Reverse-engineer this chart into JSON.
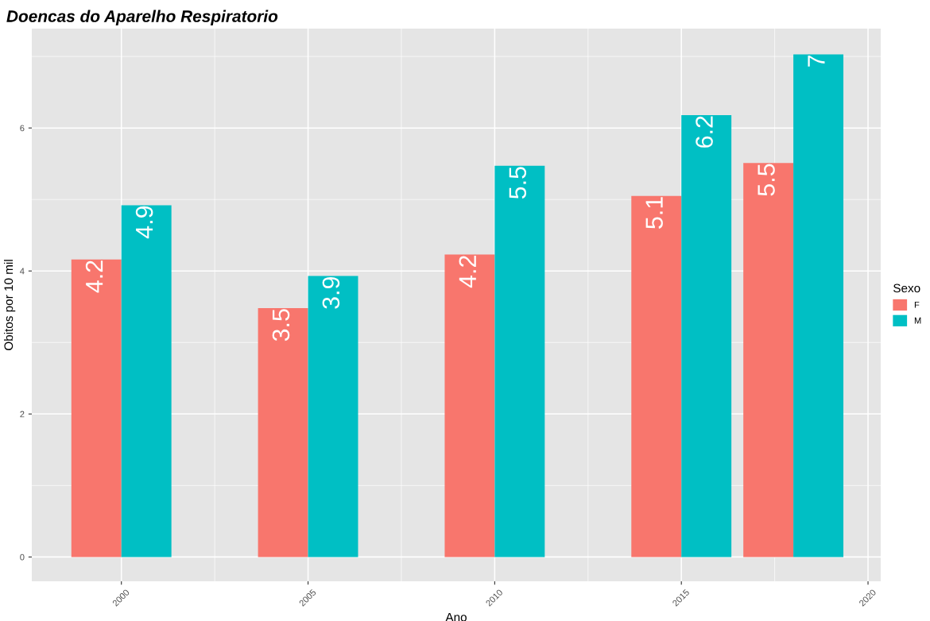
{
  "chart_data": {
    "type": "bar",
    "title": "Doencas do Aparelho Respiratorio",
    "xlabel": "Ano",
    "ylabel": "Obitos por 10 mil",
    "legend_title": "Sexo",
    "x": [
      2000,
      2005,
      2010,
      2015,
      2018
    ],
    "series": [
      {
        "name": "F",
        "color": "#f8766d",
        "values": [
          4.16,
          3.48,
          4.23,
          5.05,
          5.51
        ],
        "value_labels": [
          "4.2",
          "3.5",
          "4.2",
          "5.1",
          "5.5"
        ]
      },
      {
        "name": "M",
        "color": "#00bfc4",
        "values": [
          4.92,
          3.93,
          5.47,
          6.18,
          7.03
        ],
        "value_labels": [
          "4.9",
          "3.9",
          "5.5",
          "6.2",
          "7"
        ]
      }
    ],
    "xlim": [
      1997.6,
      2020.34
    ],
    "ylim": [
      -0.34,
      7.39
    ],
    "xticks": [
      2000,
      2005,
      2010,
      2015,
      2020
    ],
    "yticks": [
      0,
      2,
      4,
      6
    ],
    "grid": true,
    "legend": "right"
  }
}
